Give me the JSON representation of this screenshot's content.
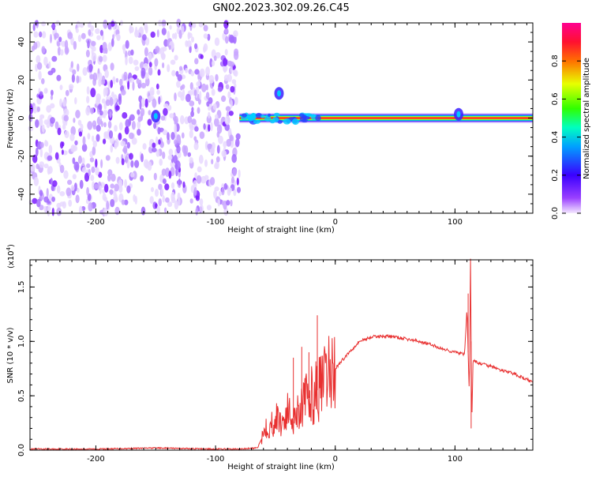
{
  "title": "GN02.2023.302.09.26.C45",
  "chart_data": [
    {
      "type": "heatmap",
      "xlabel": "Height of straight line (km)",
      "ylabel": "Frequency (Hz)",
      "xlim": [
        -255,
        165
      ],
      "ylim": [
        -50,
        50
      ],
      "xticks": [
        -200,
        -100,
        0,
        100
      ],
      "xtick_labels": [
        "-200",
        "-100",
        "0",
        "100"
      ],
      "yticks": [
        -40,
        -20,
        0,
        20,
        40
      ],
      "ytick_labels": [
        "-40",
        "-20",
        "0",
        "20",
        "40"
      ],
      "colorbar": {
        "label": "Normalized spectral amplitude",
        "range": [
          0,
          1
        ],
        "ticks": [
          0.0,
          0.2,
          0.4,
          0.6,
          0.8
        ],
        "tick_labels": [
          "0.0",
          "0.2",
          "0.4",
          "0.6",
          "0.8"
        ],
        "colormap": [
          "#ffffff",
          "#7a00ff",
          "#0000ff",
          "#00c8ff",
          "#00ff00",
          "#ffff00",
          "#ff8000",
          "#ff0000",
          "#ff0080"
        ]
      },
      "noise_region": {
        "x": [
          -255,
          -80
        ],
        "amplitude": 0.15
      },
      "carrier_line": {
        "x": [
          -80,
          165
        ],
        "frequency": 0,
        "peak_amplitude": 1.0
      },
      "features": [
        {
          "x": -150,
          "y": 1,
          "amplitude": 0.3
        },
        {
          "x": -47,
          "y": 13,
          "amplitude": 0.3
        },
        {
          "x": 103,
          "y": 2,
          "amplitude": 0.35
        }
      ]
    },
    {
      "type": "line",
      "xlabel": "Height of straight line (km)",
      "ylabel": "SNR (10 * v/v)",
      "y_multiplier": "(x10",
      "y_multiplier_exp": "4",
      "y_multiplier_close": ")",
      "xlim": [
        -255,
        165
      ],
      "ylim": [
        0,
        1.75
      ],
      "xticks": [
        -200,
        -100,
        0,
        100
      ],
      "xtick_labels": [
        "-200",
        "-100",
        "0",
        "100"
      ],
      "yticks": [
        0.0,
        0.5,
        1.0,
        1.5
      ],
      "ytick_labels": [
        "0.0",
        "0.5",
        "1.0",
        "1.5"
      ],
      "color": "#e83030",
      "series": [
        {
          "x": [
            -255,
            -200,
            -150,
            -100,
            -80,
            -65,
            -60,
            -58,
            -55,
            -50,
            -45,
            -40,
            -35,
            -30,
            -25,
            -20,
            -15,
            -10,
            -5,
            0,
            10,
            20,
            30,
            40,
            50,
            60,
            70,
            80,
            90,
            100,
            108,
            110,
            112,
            113,
            114,
            115,
            116,
            120,
            130,
            140,
            150,
            160,
            165
          ],
          "y": [
            0.01,
            0.01,
            0.02,
            0.01,
            0.01,
            0.02,
            0.15,
            0.25,
            0.2,
            0.3,
            0.25,
            0.35,
            0.3,
            0.4,
            0.45,
            0.5,
            0.55,
            0.6,
            0.7,
            0.75,
            0.88,
            1.0,
            1.04,
            1.05,
            1.04,
            1.02,
            1.0,
            0.97,
            0.93,
            0.9,
            0.88,
            1.3,
            0.5,
            1.75,
            0.25,
            0.8,
            0.82,
            0.8,
            0.77,
            0.73,
            0.7,
            0.65,
            0.62
          ]
        }
      ],
      "spikes": [
        {
          "x": -15,
          "y": 1.24
        },
        {
          "x": -35,
          "y": 0.85
        },
        {
          "x": -28,
          "y": 0.95
        },
        {
          "x": -22,
          "y": 0.9
        },
        {
          "x": 111,
          "y": 1.44
        },
        {
          "x": 113,
          "y": 1.75
        },
        {
          "x": 113.5,
          "y": 0.2
        }
      ]
    }
  ]
}
